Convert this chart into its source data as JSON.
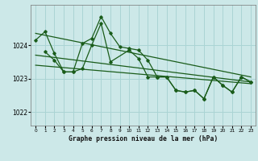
{
  "title": "Graphe pression niveau de la mer (hPa)",
  "bg_color": "#cce8e8",
  "grid_color": "#aad4d4",
  "line_color": "#1a5c1a",
  "xlim": [
    -0.5,
    23.5
  ],
  "ylim": [
    1021.6,
    1025.2
  ],
  "yticks": [
    1022,
    1023,
    1024
  ],
  "xticks": [
    0,
    1,
    2,
    3,
    4,
    5,
    6,
    7,
    8,
    9,
    10,
    11,
    12,
    13,
    14,
    15,
    16,
    17,
    18,
    19,
    20,
    21,
    22,
    23
  ],
  "series1_x": [
    0,
    1,
    2,
    3,
    4,
    5,
    6,
    7,
    8,
    9,
    10,
    11,
    12,
    13,
    14,
    15,
    16,
    17,
    18,
    19,
    20,
    21,
    22,
    23
  ],
  "series1_y": [
    1024.15,
    1024.4,
    1023.75,
    1023.2,
    1023.2,
    1024.05,
    1024.2,
    1024.85,
    1024.35,
    1023.95,
    1023.9,
    1023.85,
    1023.55,
    1023.05,
    1023.05,
    1022.65,
    1022.6,
    1022.65,
    1022.4,
    1023.05,
    1022.8,
    1022.6,
    1023.05,
    1022.9
  ],
  "series2_x": [
    1,
    2,
    3,
    4,
    5,
    6,
    7,
    8,
    10,
    11,
    12,
    13,
    14,
    15,
    16,
    17,
    18,
    19,
    20,
    21,
    22,
    23
  ],
  "series2_y": [
    1023.8,
    1023.55,
    1023.2,
    1023.2,
    1023.3,
    1024.0,
    1024.65,
    1023.5,
    1023.85,
    1023.6,
    1023.05,
    1023.05,
    1023.05,
    1022.65,
    1022.6,
    1022.65,
    1022.4,
    1023.05,
    1022.8,
    1022.6,
    1023.05,
    1022.9
  ],
  "trend1_x": [
    0,
    23
  ],
  "trend1_y": [
    1024.35,
    1023.05
  ],
  "trend2_x": [
    0,
    23
  ],
  "trend2_y": [
    1023.7,
    1022.9
  ],
  "trend3_x": [
    0,
    23
  ],
  "trend3_y": [
    1023.4,
    1022.85
  ]
}
